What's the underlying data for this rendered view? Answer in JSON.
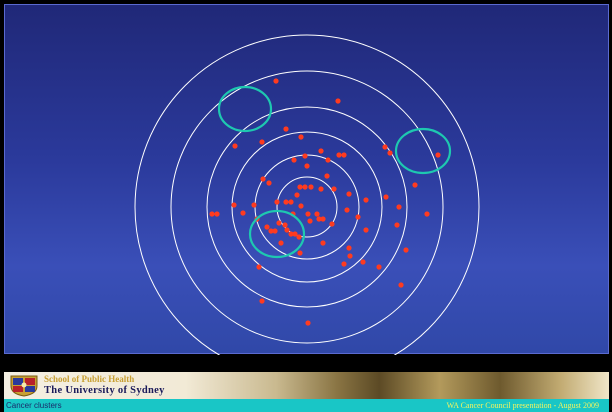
{
  "slide": {
    "plot": {
      "background_color": "#2b3a9c",
      "ring_color": "#ffffff",
      "dot_color": "#ff3b1f",
      "cluster_circle_color": "#1ec8b0",
      "ring_count": 6,
      "case_count": 74,
      "highlighted_clusters": 3
    },
    "banner": {
      "school_name": "School of Public Health",
      "university_name": "The University of Sydney",
      "crest": "university-crest-icon"
    },
    "footer": {
      "title": "Cancer clusters",
      "presentation": "WA Cancer Council presentation -  August 2009",
      "background_color": "#19c6c6",
      "presentation_color": "#f4f460"
    }
  }
}
